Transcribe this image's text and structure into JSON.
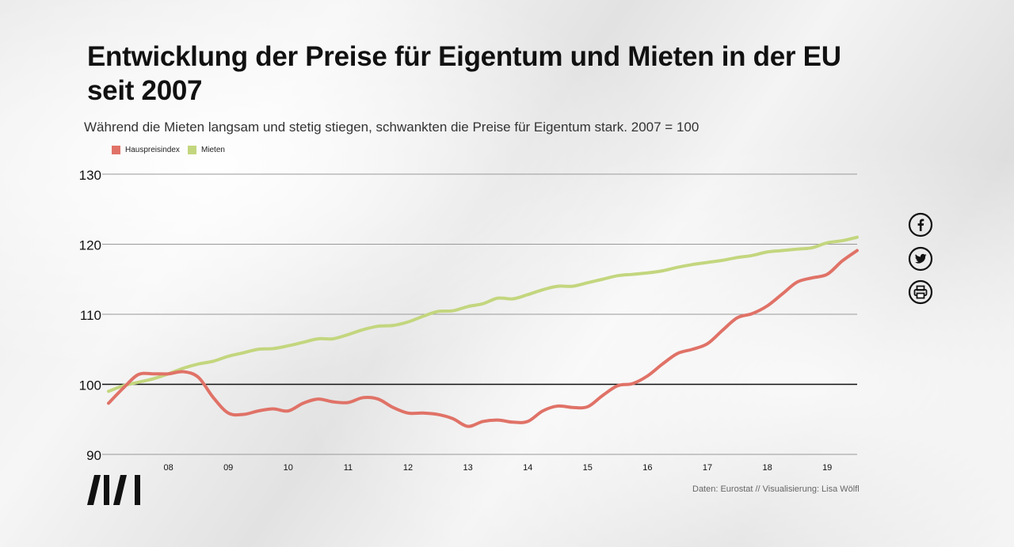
{
  "title": "Entwicklung der Preise für Eigentum und Mieten in der EU seit 2007",
  "subtitle": "Während die Mieten langsam und stetig stiegen, schwankten die Preise für Eigentum stark. 2007 = 100",
  "source": "Daten: Eurostat // Visualisierung: Lisa Wölfl",
  "social": [
    {
      "icon": "facebook-icon"
    },
    {
      "icon": "twitter-icon"
    },
    {
      "icon": "print-icon"
    }
  ],
  "colors": {
    "hauspreisindex": "#e07267",
    "mieten": "#c3d67e",
    "baseline": "#111111",
    "grid": "#999999"
  },
  "chart_data": {
    "type": "line",
    "x_frequency": "quarterly",
    "x_start": "2007-Q1",
    "x_end": "2019-Q3",
    "xticks": [
      "08",
      "09",
      "10",
      "11",
      "12",
      "13",
      "14",
      "15",
      "16",
      "17",
      "18",
      "19"
    ],
    "xtick_years": [
      2008,
      2009,
      2010,
      2011,
      2012,
      2013,
      2014,
      2015,
      2016,
      2017,
      2018,
      2019
    ],
    "yticks": [
      "90",
      "100",
      "110",
      "120",
      "130"
    ],
    "ylim": [
      90,
      130
    ],
    "baseline": 100,
    "grid": true,
    "legend": "top-left",
    "series": [
      {
        "name": "Hauspreisindex",
        "color": "#e07267",
        "values": [
          97.3,
          99.5,
          101.4,
          101.5,
          101.5,
          101.8,
          101.0,
          98.1,
          95.9,
          95.7,
          96.2,
          96.5,
          96.2,
          97.3,
          97.9,
          97.5,
          97.4,
          98.1,
          97.9,
          96.7,
          95.9,
          95.9,
          95.7,
          95.1,
          94.0,
          94.7,
          94.9,
          94.6,
          94.7,
          96.2,
          96.9,
          96.7,
          96.8,
          98.4,
          99.8,
          100.1,
          101.2,
          102.9,
          104.4,
          105.0,
          105.8,
          107.7,
          109.5,
          110.1,
          111.2,
          112.9,
          114.6,
          115.2,
          115.7,
          117.6,
          119.1
        ]
      },
      {
        "name": "Mieten",
        "color": "#c3d67e",
        "values": [
          99.0,
          99.8,
          100.3,
          100.8,
          101.5,
          102.3,
          102.9,
          103.3,
          104.0,
          104.5,
          105.0,
          105.1,
          105.5,
          106.0,
          106.5,
          106.5,
          107.1,
          107.8,
          108.3,
          108.4,
          108.9,
          109.7,
          110.4,
          110.5,
          111.1,
          111.5,
          112.3,
          112.2,
          112.8,
          113.5,
          114.0,
          114.0,
          114.5,
          115.0,
          115.5,
          115.7,
          115.9,
          116.2,
          116.7,
          117.1,
          117.4,
          117.7,
          118.1,
          118.4,
          118.9,
          119.1,
          119.3,
          119.5,
          120.2,
          120.5,
          121.0
        ]
      }
    ]
  }
}
